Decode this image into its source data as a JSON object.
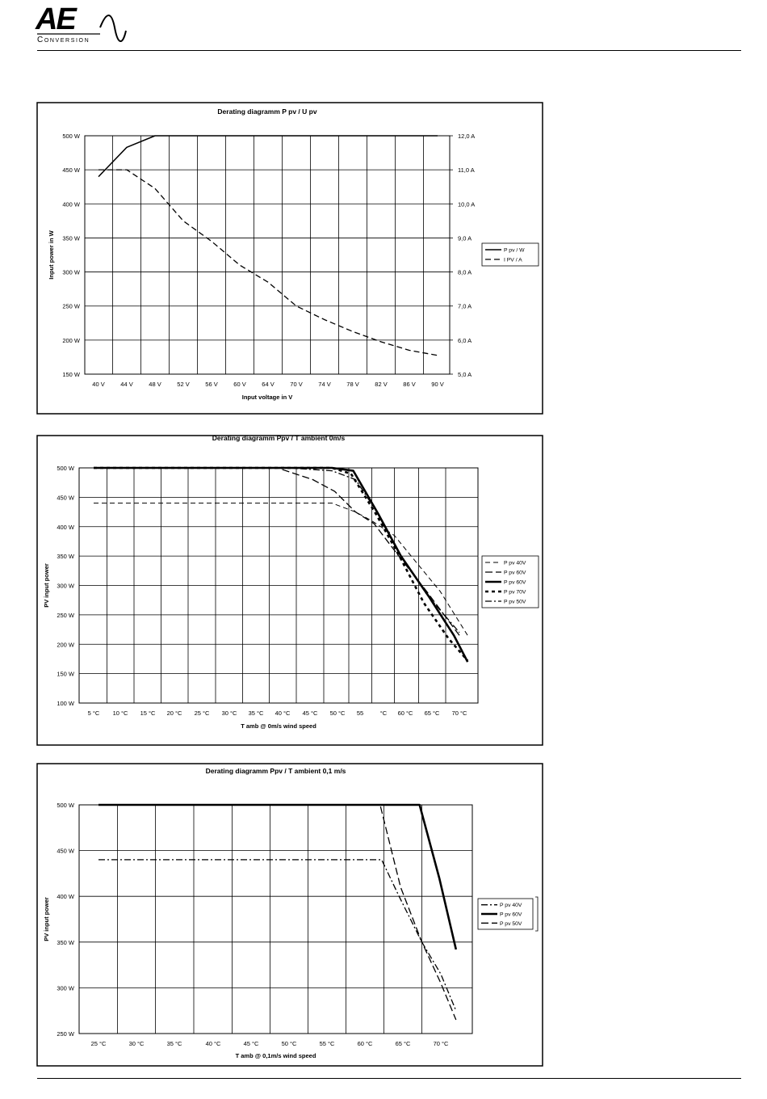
{
  "logo": {
    "brand_text": "AE",
    "subtitle": "Conversion"
  },
  "chart_data": [
    {
      "type": "line",
      "title": "Derating diagramm P pv / U pv",
      "xlabel": "Input voltage in V",
      "ylabel": "Input power in W",
      "y2label": "",
      "categories": [
        "40 V",
        "44 V",
        "48 V",
        "52 V",
        "56 V",
        "60 V",
        "64 V",
        "70 V",
        "74 V",
        "78 V",
        "82 V",
        "86 V",
        "90 V"
      ],
      "yticks": [
        "150 W",
        "200 W",
        "250 W",
        "300 W",
        "350 W",
        "400 W",
        "450 W",
        "500 W"
      ],
      "y2ticks": [
        "5,0 A",
        "6,0 A",
        "7,0 A",
        "8,0 A",
        "9,0 A",
        "10,0 A",
        "11,0 A",
        "12,0 A"
      ],
      "ylim": [
        150,
        500
      ],
      "y2lim": [
        5,
        12
      ],
      "grid": true,
      "legend_position": "right",
      "series": [
        {
          "name": "P pv / W",
          "axis": "left",
          "style": "solid",
          "x": [
            0,
            1,
            2,
            3,
            4,
            5,
            6,
            7,
            8,
            9,
            10,
            11,
            12
          ],
          "values": [
            440,
            483,
            500,
            500,
            500,
            500,
            500,
            500,
            500,
            500,
            500,
            500,
            500
          ]
        },
        {
          "name": "I PV / A",
          "axis": "right",
          "style": "dashed",
          "x": [
            0,
            1,
            2,
            3,
            4,
            5,
            6,
            7,
            8,
            9,
            10,
            11,
            12
          ],
          "values": [
            11.0,
            11.0,
            10.45,
            9.5,
            8.9,
            8.2,
            7.7,
            7.0,
            6.6,
            6.25,
            5.95,
            5.7,
            5.55
          ]
        }
      ]
    },
    {
      "type": "line",
      "title": "Derating diagramm Ppv / T ambient 0m/s",
      "xlabel": "T amb  @  0m/s wind speed",
      "ylabel": "PV input power",
      "categories": [
        "5 °C",
        "10 °C",
        "15 °C",
        "20 °C",
        "25 °C",
        "30 °C",
        "35 °C",
        "40 °C",
        "45 °C",
        "50 °C",
        "55",
        "°C",
        "60 °C",
        "65 °C",
        "70 °C"
      ],
      "yticks": [
        "100 W",
        "150 W",
        "200 W",
        "250 W",
        "300 W",
        "350 W",
        "400 W",
        "450 W",
        "500 W"
      ],
      "ylim": [
        100,
        500
      ],
      "grid": true,
      "legend_position": "right",
      "series": [
        {
          "name": "P pv 40V",
          "style": "dashed-thin",
          "x": [
            0,
            4.5,
            8.8,
            9.8,
            10.5,
            11.5,
            12.4,
            13.3,
            14.3
          ],
          "values": [
            440,
            440,
            440,
            425,
            410,
            385,
            340,
            290,
            215
          ]
        },
        {
          "name": "P pv 60V",
          "style": "dashed-long",
          "x": [
            0,
            3.4,
            6.8,
            8.1,
            8.9,
            9.8,
            10.6,
            11.7,
            12.8,
            14.0
          ],
          "values": [
            500,
            500,
            500,
            480,
            460,
            425,
            405,
            350,
            290,
            215
          ]
        },
        {
          "name": "P pv 60V",
          "style": "solid-bold",
          "x": [
            0,
            5.0,
            8.8,
            9.7,
            10.8,
            11.8,
            12.9,
            13.8,
            14.3
          ],
          "values": [
            500,
            500,
            500,
            495,
            420,
            350,
            280,
            215,
            170
          ]
        },
        {
          "name": "P pv 70V",
          "style": "dotted-bold",
          "x": [
            0,
            5.0,
            8.8,
            9.6,
            10.7,
            11.8,
            12.7,
            13.6,
            14.3
          ],
          "values": [
            500,
            500,
            500,
            490,
            420,
            345,
            270,
            210,
            172
          ]
        },
        {
          "name": "P pv 50V",
          "style": "dash-dot",
          "x": [
            0,
            5.0,
            7.2,
            8.8,
            9.8,
            10.8,
            11.8,
            12.8,
            14.0
          ],
          "values": [
            500,
            500,
            500,
            495,
            480,
            420,
            350,
            285,
            220
          ]
        }
      ]
    },
    {
      "type": "line",
      "title": "Derating diagramm Ppv / T ambient 0,1 m/s",
      "xlabel": "T amb  @  0,1m/s wind speed",
      "ylabel": "PV input power",
      "categories": [
        "25 °C",
        "30 °C",
        "35 °C",
        "40 °C",
        "45 °C",
        "50 °C",
        "55 °C",
        "60 °C",
        "65 °C",
        "70 °C"
      ],
      "yticks": [
        "250 W",
        "300 W",
        "350 W",
        "400 W",
        "450 W",
        "500 W"
      ],
      "ylim": [
        250,
        500
      ],
      "grid": true,
      "legend_position": "right",
      "series": [
        {
          "name": "P pv 40V",
          "style": "dash-dot",
          "x": [
            25,
            35,
            45,
            55,
            62.2,
            64.5,
            67.5,
            70,
            72
          ],
          "values": [
            440,
            440,
            440,
            440,
            440,
            400,
            350,
            315,
            275
          ]
        },
        {
          "name": "P pv 60V",
          "style": "solid-bold",
          "x": [
            25,
            40,
            55,
            67.2,
            69.8,
            72
          ],
          "values": [
            500,
            500,
            500,
            500,
            420,
            342
          ]
        },
        {
          "name": "P pv 50V",
          "style": "dashed-long",
          "x": [
            25,
            40,
            55,
            62.0,
            64.7,
            67.5,
            70,
            72
          ],
          "values": [
            500,
            500,
            500,
            500,
            410,
            350,
            305,
            265
          ]
        }
      ]
    }
  ]
}
